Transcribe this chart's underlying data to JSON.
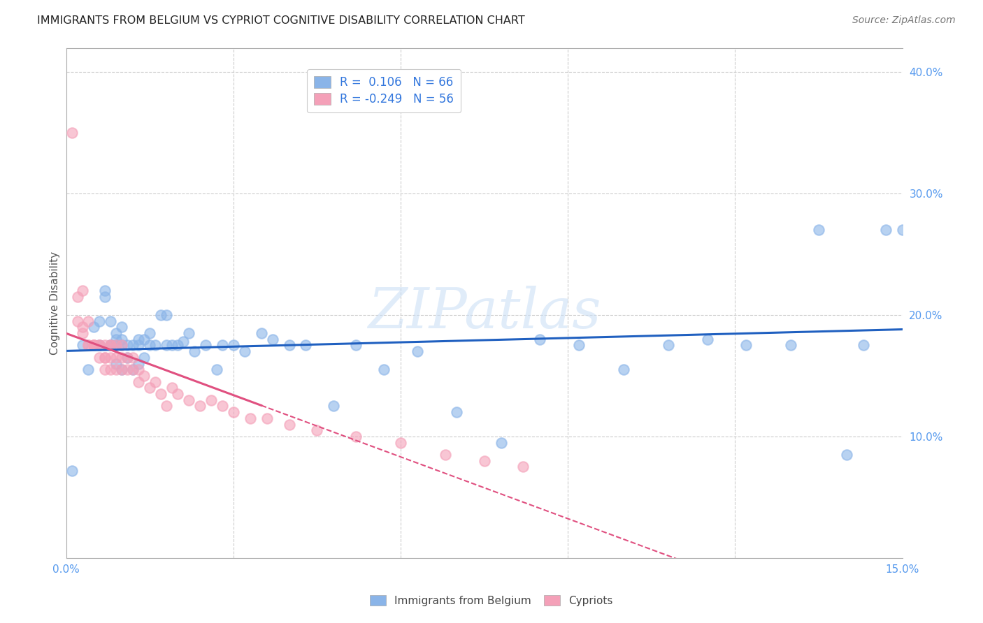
{
  "title": "IMMIGRANTS FROM BELGIUM VS CYPRIOT COGNITIVE DISABILITY CORRELATION CHART",
  "source": "Source: ZipAtlas.com",
  "ylabel": "Cognitive Disability",
  "xlim": [
    0.0,
    0.15
  ],
  "ylim": [
    0.0,
    0.42
  ],
  "blue_color": "#8AB4E8",
  "pink_color": "#F4A0B8",
  "blue_line_color": "#2060C0",
  "pink_line_color": "#E05080",
  "watermark": "ZIPatlas",
  "blue_r": "R =  0.106",
  "blue_n": "N = 66",
  "pink_r": "R = -0.249",
  "pink_n": "N = 56",
  "belgium_x": [
    0.001,
    0.003,
    0.004,
    0.005,
    0.006,
    0.006,
    0.007,
    0.007,
    0.008,
    0.008,
    0.008,
    0.009,
    0.009,
    0.009,
    0.009,
    0.01,
    0.01,
    0.01,
    0.01,
    0.011,
    0.011,
    0.012,
    0.012,
    0.013,
    0.013,
    0.013,
    0.014,
    0.014,
    0.015,
    0.015,
    0.016,
    0.017,
    0.018,
    0.018,
    0.019,
    0.02,
    0.021,
    0.022,
    0.023,
    0.025,
    0.027,
    0.028,
    0.03,
    0.032,
    0.035,
    0.037,
    0.04,
    0.043,
    0.048,
    0.052,
    0.057,
    0.063,
    0.07,
    0.078,
    0.085,
    0.092,
    0.1,
    0.108,
    0.115,
    0.122,
    0.13,
    0.135,
    0.14,
    0.143,
    0.147,
    0.15
  ],
  "belgium_y": [
    0.072,
    0.175,
    0.155,
    0.19,
    0.175,
    0.195,
    0.215,
    0.22,
    0.175,
    0.175,
    0.195,
    0.16,
    0.175,
    0.18,
    0.185,
    0.155,
    0.175,
    0.18,
    0.19,
    0.165,
    0.175,
    0.155,
    0.175,
    0.16,
    0.175,
    0.18,
    0.165,
    0.18,
    0.175,
    0.185,
    0.175,
    0.2,
    0.2,
    0.175,
    0.175,
    0.175,
    0.178,
    0.185,
    0.17,
    0.175,
    0.155,
    0.175,
    0.175,
    0.17,
    0.185,
    0.18,
    0.175,
    0.175,
    0.125,
    0.175,
    0.155,
    0.17,
    0.12,
    0.095,
    0.18,
    0.175,
    0.155,
    0.175,
    0.18,
    0.175,
    0.175,
    0.27,
    0.085,
    0.175,
    0.27,
    0.27
  ],
  "cypriot_x": [
    0.001,
    0.002,
    0.002,
    0.003,
    0.003,
    0.003,
    0.004,
    0.004,
    0.004,
    0.005,
    0.005,
    0.005,
    0.006,
    0.006,
    0.006,
    0.007,
    0.007,
    0.007,
    0.007,
    0.008,
    0.008,
    0.008,
    0.008,
    0.009,
    0.009,
    0.009,
    0.01,
    0.01,
    0.01,
    0.011,
    0.011,
    0.012,
    0.012,
    0.013,
    0.013,
    0.014,
    0.015,
    0.016,
    0.017,
    0.018,
    0.019,
    0.02,
    0.022,
    0.024,
    0.026,
    0.028,
    0.03,
    0.033,
    0.036,
    0.04,
    0.045,
    0.052,
    0.06,
    0.068,
    0.075,
    0.082
  ],
  "cypriot_y": [
    0.35,
    0.215,
    0.195,
    0.185,
    0.19,
    0.22,
    0.175,
    0.195,
    0.175,
    0.175,
    0.175,
    0.175,
    0.175,
    0.165,
    0.175,
    0.165,
    0.155,
    0.165,
    0.175,
    0.165,
    0.155,
    0.175,
    0.175,
    0.155,
    0.165,
    0.175,
    0.155,
    0.165,
    0.175,
    0.155,
    0.165,
    0.155,
    0.165,
    0.145,
    0.155,
    0.15,
    0.14,
    0.145,
    0.135,
    0.125,
    0.14,
    0.135,
    0.13,
    0.125,
    0.13,
    0.125,
    0.12,
    0.115,
    0.115,
    0.11,
    0.105,
    0.1,
    0.095,
    0.085,
    0.08,
    0.075
  ]
}
